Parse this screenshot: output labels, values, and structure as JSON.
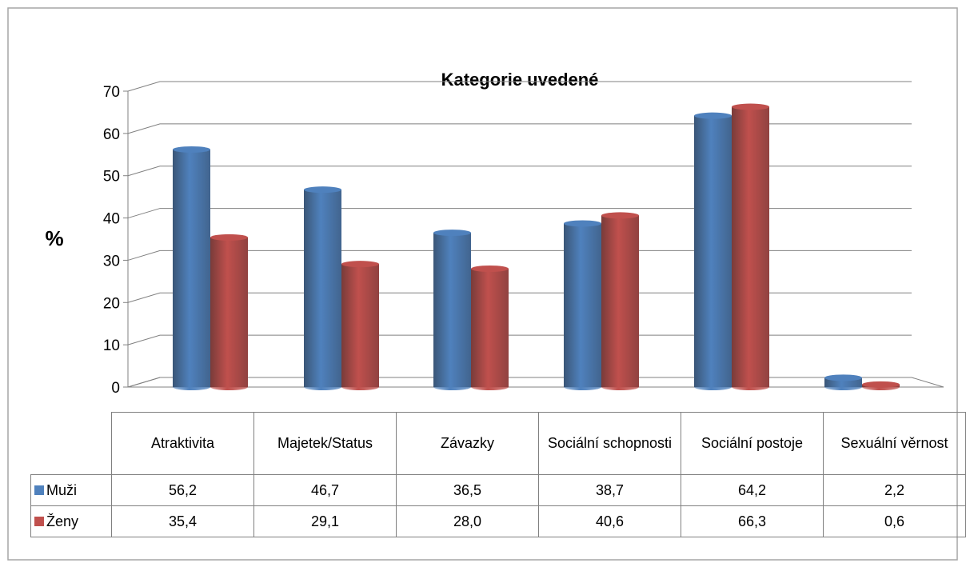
{
  "chart_data": {
    "type": "bar3d",
    "title": "Kategorie uvedené",
    "y_label": "%",
    "categories": [
      "Atraktivita",
      "Majetek/Status",
      "Závazky",
      "Sociální schopnosti",
      "Sociální postoje",
      "Sexuální věrnost"
    ],
    "series": [
      {
        "name": "Muži",
        "color": "#4f81bd",
        "values": [
          56.2,
          46.7,
          36.5,
          38.7,
          64.2,
          2.2
        ],
        "value_labels": [
          "56,2",
          "46,7",
          "36,5",
          "38,7",
          "64,2",
          "2,2"
        ]
      },
      {
        "name": "Ženy",
        "color": "#c0504d",
        "values": [
          35.4,
          29.1,
          28.0,
          40.6,
          66.3,
          0.6
        ],
        "value_labels": [
          "35,4",
          "29,1",
          "28,0",
          "40,6",
          "66,3",
          "0,6"
        ]
      }
    ],
    "ylim": [
      0,
      70
    ],
    "yticks": [
      0,
      10,
      20,
      30,
      40,
      50,
      60,
      70
    ],
    "grid": true,
    "data_table": true
  }
}
